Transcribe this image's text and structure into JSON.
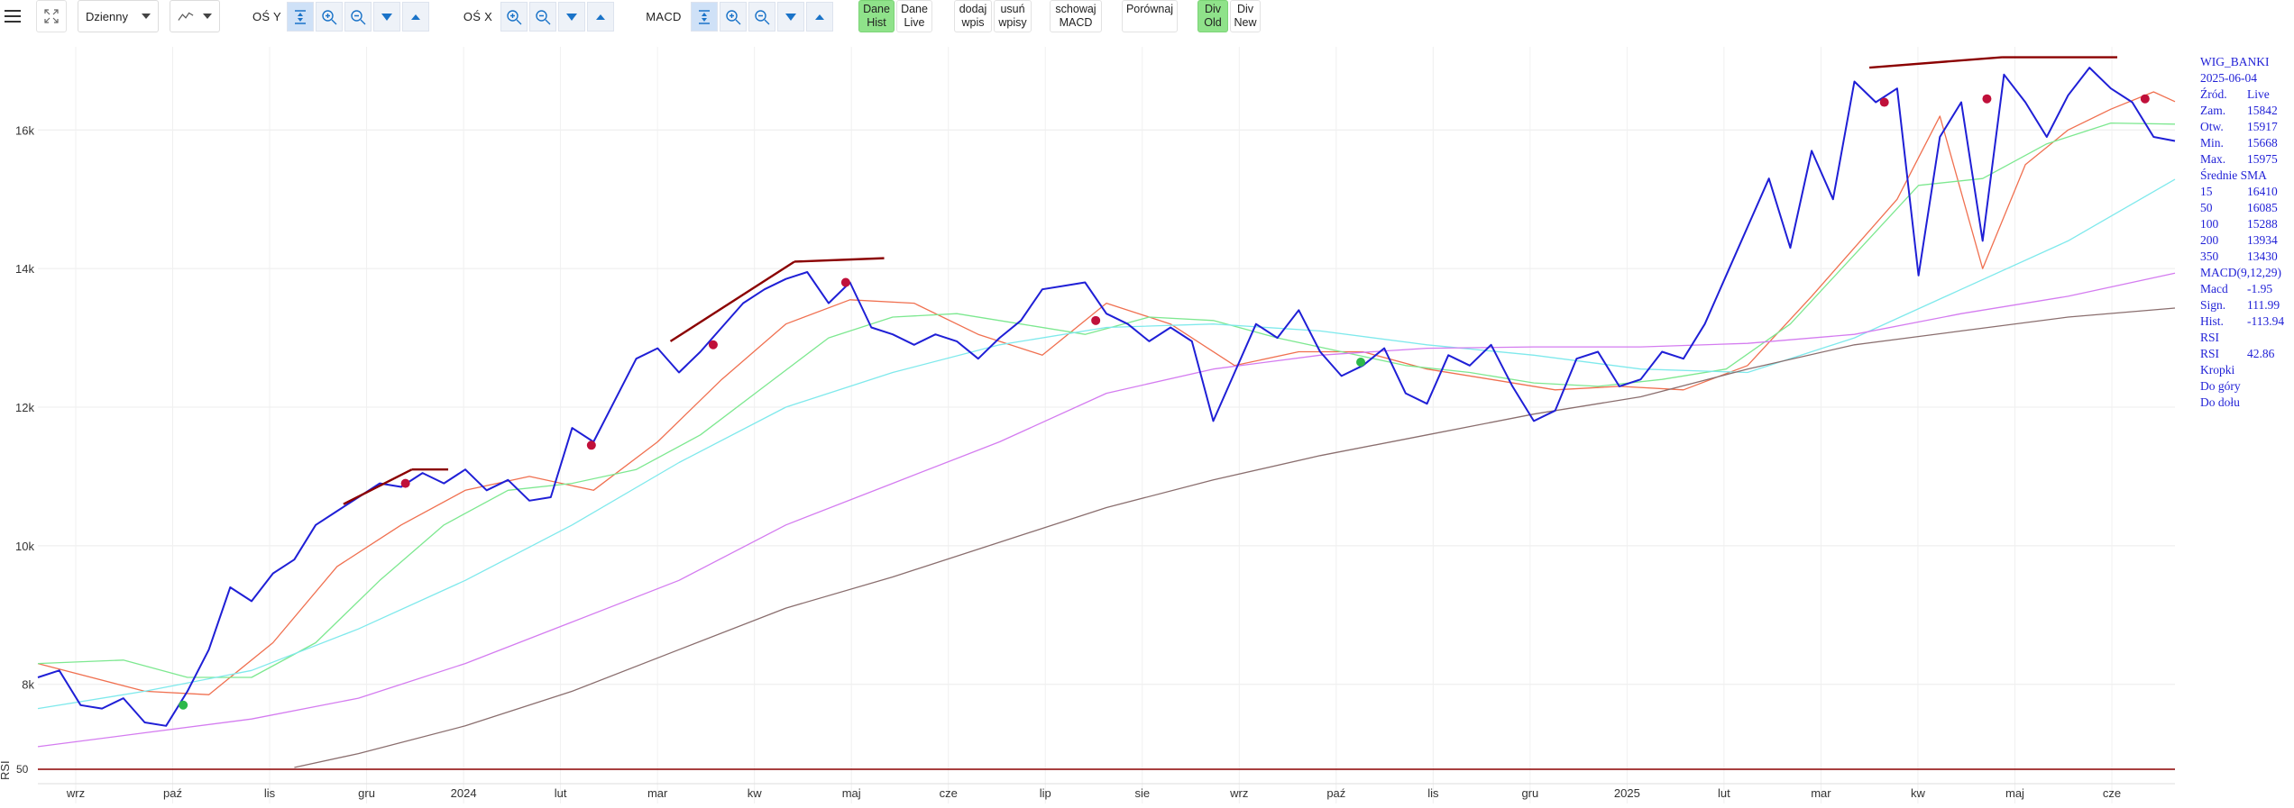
{
  "toolbar": {
    "interval": "Dzienny",
    "axis_y_label": "OŚ Y",
    "axis_x_label": "OŚ X",
    "macd_label": "MACD",
    "dane_hist": [
      "Dane",
      "Hist"
    ],
    "dane_live": [
      "Dane",
      "Live"
    ],
    "dodaj_wpis": [
      "dodaj",
      "wpis"
    ],
    "usun_wpisy": [
      "usuń",
      "wpisy"
    ],
    "schowaj_macd": [
      "schowaj",
      "MACD"
    ],
    "porownaj": "Porównaj",
    "div_old": [
      "Div",
      "Old"
    ],
    "div_new": [
      "Div",
      "New"
    ]
  },
  "info_panel": {
    "symbol": "WIG_BANKI",
    "date": "2025-06-04",
    "rows": [
      {
        "k": "Źród.",
        "v": "Live"
      },
      {
        "k": "Zam.",
        "v": "15842"
      },
      {
        "k": "Otw.",
        "v": "15917"
      },
      {
        "k": "Min.",
        "v": "15668"
      },
      {
        "k": "Max.",
        "v": "15975"
      }
    ],
    "sma_title": "Średnie SMA",
    "sma_rows": [
      {
        "k": "15",
        "v": "16410"
      },
      {
        "k": "50",
        "v": "16085"
      },
      {
        "k": "100",
        "v": "15288"
      },
      {
        "k": "200",
        "v": "13934"
      },
      {
        "k": "350",
        "v": "13430"
      }
    ],
    "macd_title": "MACD(9,12,29)",
    "macd_rows": [
      {
        "k": "Macd",
        "v": "-1.95"
      },
      {
        "k": "Sign.",
        "v": "111.99"
      },
      {
        "k": "Hist.",
        "v": "-113.94"
      }
    ],
    "rsi_title": "RSI",
    "rsi_rows": [
      {
        "k": "RSI",
        "v": "42.86"
      }
    ],
    "dots_title": "Kropki",
    "dots_up": "Do góry",
    "dots_down": "Do dołu"
  },
  "chart_data": {
    "type": "line",
    "x_ticks": [
      "wrz",
      "paź",
      "lis",
      "gru",
      "2024",
      "lut",
      "mar",
      "kw",
      "maj",
      "cze",
      "lip",
      "sie",
      "wrz",
      "paź",
      "lis",
      "gru",
      "2025",
      "lut",
      "mar",
      "kw",
      "maj",
      "cze"
    ],
    "y_ticks": [
      "8k",
      "10k",
      "12k",
      "14k",
      "16k"
    ],
    "y_tick_values": [
      8000,
      10000,
      12000,
      14000,
      16000
    ],
    "ylim": [
      6800,
      17200
    ],
    "x_range": [
      0,
      100
    ],
    "rsi_label": "RSI",
    "rsi_tick": "50",
    "colors": {
      "price": "#1f1fd6",
      "sma15": "#f07050",
      "sma50": "#7de890",
      "sma100": "#7fe9ec",
      "sma200": "#d47cf0",
      "sma350": "#8a6e6e",
      "trend": "#8b0000",
      "dot_up": "#2db84a",
      "dot_down": "#c0103a"
    },
    "series": [
      {
        "name": "price",
        "x": [
          0,
          1,
          2,
          3,
          4,
          5,
          6,
          7,
          8,
          9,
          10,
          11,
          12,
          13,
          14,
          15,
          16,
          17,
          18,
          19,
          20,
          21,
          22,
          23,
          24,
          25,
          26,
          27,
          28,
          29,
          30,
          31,
          32,
          33,
          34,
          35,
          36,
          37,
          38,
          39,
          40,
          41,
          42,
          43,
          44,
          45,
          46,
          47,
          48,
          49,
          50,
          51,
          52,
          53,
          54,
          55,
          56,
          57,
          58,
          59,
          60,
          61,
          62,
          63,
          64,
          65,
          66,
          67,
          68,
          69,
          70,
          71,
          72,
          73,
          74,
          75,
          76,
          77,
          78,
          79,
          80,
          81,
          82,
          83,
          84,
          85,
          86,
          87,
          88,
          89,
          90,
          91,
          92,
          93,
          94,
          95,
          96,
          97,
          98,
          99,
          100
        ],
        "y": [
          8100,
          8200,
          7700,
          7650,
          7800,
          7450,
          7400,
          7900,
          8500,
          9400,
          9200,
          9600,
          9800,
          10300,
          10500,
          10700,
          10900,
          10850,
          11050,
          10900,
          11100,
          10800,
          10950,
          10650,
          10700,
          11700,
          11500,
          12100,
          12700,
          12850,
          12500,
          12800,
          13150,
          13500,
          13700,
          13850,
          13950,
          13500,
          13800,
          13150,
          13050,
          12900,
          13050,
          12950,
          12700,
          13000,
          13250,
          13700,
          13750,
          13800,
          13350,
          13200,
          12950,
          13150,
          12950,
          11800,
          12500,
          13200,
          13000,
          13400,
          12800,
          12450,
          12600,
          12850,
          12200,
          12050,
          12750,
          12600,
          12900,
          12300,
          11800,
          11950,
          12700,
          12800,
          12300,
          12400,
          12800,
          12700,
          13200,
          13900,
          14600,
          15300,
          14300,
          15700,
          15000,
          16700,
          16400,
          16600,
          13900,
          15900,
          16400,
          14400,
          16800,
          16400,
          15900,
          16500,
          16900,
          16600,
          16400,
          15900,
          15842
        ]
      },
      {
        "name": "sma15",
        "x": [
          0,
          5,
          8,
          11,
          14,
          17,
          20,
          23,
          26,
          29,
          32,
          35,
          38,
          41,
          44,
          47,
          50,
          53,
          56,
          59,
          62,
          65,
          68,
          71,
          74,
          77,
          80,
          83,
          85,
          87,
          89,
          91,
          93,
          95,
          97,
          99,
          100
        ],
        "y": [
          8300,
          7900,
          7850,
          8600,
          9700,
          10300,
          10800,
          11000,
          10800,
          11500,
          12400,
          13200,
          13550,
          13500,
          13050,
          12750,
          13500,
          13200,
          12600,
          12800,
          12800,
          12550,
          12400,
          12250,
          12300,
          12250,
          12600,
          13600,
          14300,
          15000,
          16200,
          14000,
          15500,
          16000,
          16300,
          16550,
          16410
        ]
      },
      {
        "name": "sma50",
        "x": [
          0,
          4,
          7,
          10,
          13,
          16,
          19,
          22,
          25,
          28,
          31,
          34,
          37,
          40,
          43,
          46,
          49,
          52,
          55,
          58,
          61,
          64,
          67,
          70,
          73,
          76,
          79,
          82,
          85,
          88,
          91,
          94,
          97,
          100
        ],
        "y": [
          8300,
          8350,
          8100,
          8100,
          8600,
          9500,
          10300,
          10800,
          10900,
          11100,
          11600,
          12300,
          13000,
          13300,
          13350,
          13200,
          13050,
          13300,
          13250,
          13000,
          12800,
          12600,
          12500,
          12350,
          12300,
          12400,
          12550,
          13200,
          14200,
          15200,
          15300,
          15800,
          16100,
          16085
        ]
      },
      {
        "name": "sma100",
        "x": [
          0,
          5,
          10,
          15,
          20,
          25,
          30,
          35,
          40,
          45,
          50,
          55,
          60,
          65,
          70,
          75,
          80,
          85,
          90,
          95,
          100
        ],
        "y": [
          7650,
          7900,
          8200,
          8800,
          9500,
          10300,
          11200,
          12000,
          12500,
          12900,
          13150,
          13200,
          13100,
          12900,
          12750,
          12550,
          12500,
          13000,
          13700,
          14400,
          15288
        ]
      },
      {
        "name": "sma200",
        "x": [
          0,
          5,
          10,
          15,
          20,
          25,
          30,
          35,
          40,
          45,
          50,
          55,
          60,
          65,
          70,
          75,
          80,
          85,
          90,
          95,
          100
        ],
        "y": [
          7100,
          7300,
          7500,
          7800,
          8300,
          8900,
          9500,
          10300,
          10900,
          11500,
          12200,
          12550,
          12750,
          12850,
          12870,
          12870,
          12920,
          13050,
          13350,
          13600,
          13934
        ]
      },
      {
        "name": "sma350",
        "x": [
          12,
          15,
          20,
          25,
          30,
          35,
          40,
          45,
          50,
          55,
          60,
          65,
          70,
          75,
          80,
          85,
          90,
          95,
          100
        ],
        "y": [
          6800,
          7000,
          7400,
          7900,
          8500,
          9100,
          9550,
          10050,
          10550,
          10950,
          11300,
          11600,
          11900,
          12150,
          12550,
          12900,
          13100,
          13300,
          13430
        ]
      }
    ],
    "trend_lines": [
      {
        "x": [
          14.3,
          17.5
        ],
        "y": [
          10600,
          11100
        ]
      },
      {
        "x": [
          17.5,
          19.2
        ],
        "y": [
          11100,
          11100
        ]
      },
      {
        "x": [
          29.6,
          35.4
        ],
        "y": [
          12950,
          14100
        ]
      },
      {
        "x": [
          35.4,
          39.6
        ],
        "y": [
          14100,
          14150
        ]
      },
      {
        "x": [
          85.7,
          91.9
        ],
        "y": [
          16900,
          17050
        ]
      },
      {
        "x": [
          91.9,
          97.3
        ],
        "y": [
          17050,
          17050
        ]
      }
    ],
    "dots_up": [
      {
        "x": 6.8,
        "y": 7700
      },
      {
        "x": 61.9,
        "y": 12650
      }
    ],
    "dots_down": [
      {
        "x": 17.2,
        "y": 10900
      },
      {
        "x": 25.9,
        "y": 11450
      },
      {
        "x": 31.6,
        "y": 12900
      },
      {
        "x": 37.8,
        "y": 13800
      },
      {
        "x": 49.5,
        "y": 13250
      },
      {
        "x": 86.4,
        "y": 16400
      },
      {
        "x": 91.2,
        "y": 16450
      },
      {
        "x": 98.6,
        "y": 16450
      }
    ]
  }
}
